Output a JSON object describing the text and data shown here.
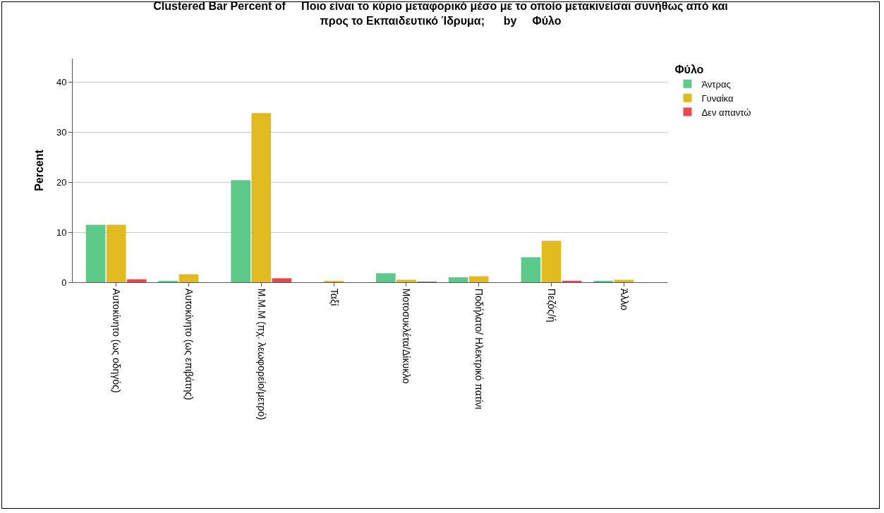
{
  "chart_data": {
    "type": "bar",
    "title": "Clustered Bar Percent of     Ποιο είναι το κύριο μεταφορικό μέσο με το οποίο μετακινείσαι συνήθως από και\nπρος το Εκπαιδευτικό Ίδρυμα;      by     Φύλο",
    "ylabel": "Percent",
    "legend_title": "Φύλο",
    "categories": [
      "Αυτοκίνητο (ως οδηγός)",
      "Αυτοκίνητο (ως επιβάτης)",
      "Μ.Μ.Μ (πχ. λεωφορείο/μετρό)",
      "Ταξί",
      "Μοτοσυκλέτα/Δίκυκλο",
      "Ποδήλατο/ Ηλεκτρικό πατίνι",
      "Πεζός/ή",
      "Άλλο"
    ],
    "series": [
      {
        "name": "Άντρας",
        "color": "#5ccb8a",
        "values": [
          11.5,
          0.2,
          20.4,
          null,
          1.8,
          1.0,
          5.0,
          0.2
        ]
      },
      {
        "name": "Γυναίκα",
        "color": "#e0ba1e",
        "values": [
          11.5,
          1.6,
          33.8,
          0.2,
          0.5,
          1.2,
          8.3,
          0.5
        ]
      },
      {
        "name": "Δεν απαντώ",
        "color": "#e8474c",
        "values": [
          0.6,
          null,
          0.8,
          null,
          0.1,
          null,
          0.3,
          null
        ]
      }
    ],
    "ylim": [
      0,
      44.7
    ],
    "yticks": [
      0,
      10,
      20,
      30,
      40
    ],
    "grid": "y",
    "legend": "top right"
  }
}
